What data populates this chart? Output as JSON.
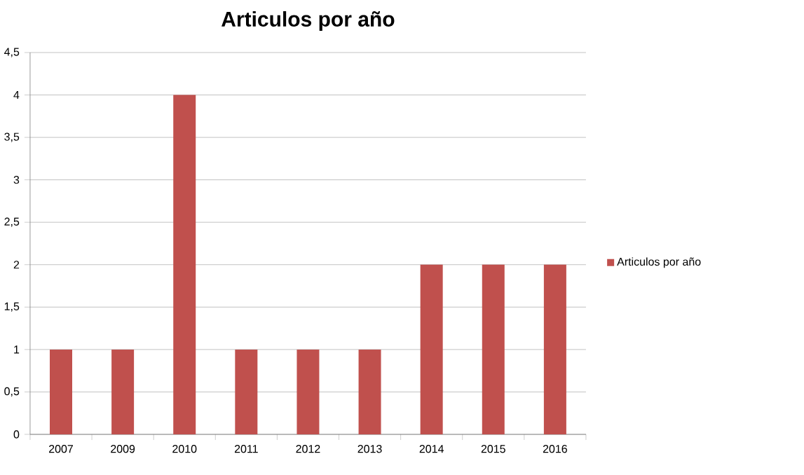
{
  "chart_data": {
    "type": "bar",
    "title": "Articulos  por año",
    "categories": [
      "2007",
      "2009",
      "2010",
      "2011",
      "2012",
      "2013",
      "2014",
      "2015",
      "2016"
    ],
    "series": [
      {
        "name": "Articulos  por año",
        "color": "#c0504d",
        "values": [
          1,
          1,
          4,
          1,
          1,
          1,
          2,
          2,
          2
        ]
      }
    ],
    "ylim": [
      0,
      4.5
    ],
    "yticks": [
      0,
      {
        "value": 0.5,
        "label": "0,5"
      },
      1,
      {
        "value": 1.5,
        "label": "1,5"
      },
      2,
      {
        "value": 2.5,
        "label": "2,5"
      },
      3,
      {
        "value": 3.5,
        "label": "3,5"
      },
      4,
      {
        "value": 4.5,
        "label": "4,5"
      }
    ],
    "grid": "y",
    "legend": "right"
  }
}
